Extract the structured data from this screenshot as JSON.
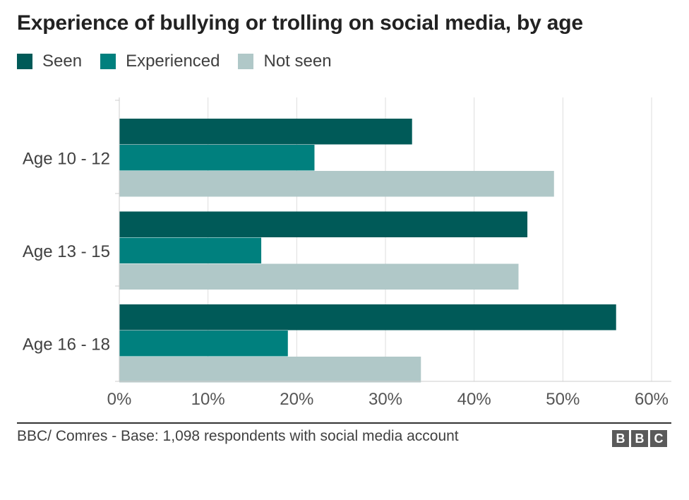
{
  "title": "Experience of bullying or trolling on social media, by age",
  "legend": [
    {
      "label": "Seen",
      "color": "#005a58"
    },
    {
      "label": "Experienced",
      "color": "#00807e"
    },
    {
      "label": "Not seen",
      "color": "#b0c8c8"
    }
  ],
  "source": "BBC/ Comres - Base: 1,098 respondents with social media account",
  "logo": [
    "B",
    "B",
    "C"
  ],
  "chart_data": {
    "type": "bar",
    "orientation": "horizontal",
    "categories": [
      "Age 10 - 12",
      "Age 13 - 15",
      "Age 16 - 18"
    ],
    "series": [
      {
        "name": "Seen",
        "values": [
          33,
          46,
          56
        ],
        "color": "#005a58"
      },
      {
        "name": "Experienced",
        "values": [
          22,
          16,
          19
        ],
        "color": "#00807e"
      },
      {
        "name": "Not seen",
        "values": [
          49,
          45,
          34
        ],
        "color": "#b0c8c8"
      }
    ],
    "xlim": [
      0,
      60
    ],
    "xticks": [
      0,
      10,
      20,
      30,
      40,
      50,
      60
    ],
    "xtick_labels": [
      "0%",
      "10%",
      "20%",
      "30%",
      "40%",
      "50%",
      "60%"
    ],
    "unit": "%",
    "grid": true,
    "legend_position": "top-left"
  }
}
